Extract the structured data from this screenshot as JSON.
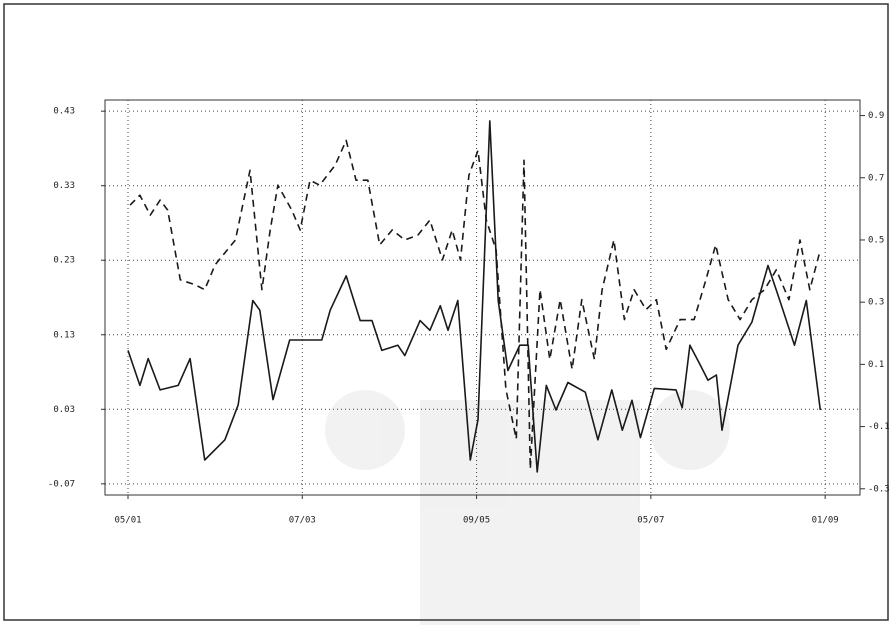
{
  "chart_data": {
    "type": "line",
    "xlim": [
      -3.3,
      105
    ],
    "xticks": [
      {
        "value": 0,
        "label": "05/01"
      },
      {
        "value": 25,
        "label": "07/03"
      },
      {
        "value": 50,
        "label": "09/05"
      },
      {
        "value": 75,
        "label": "05/07"
      },
      {
        "value": 100,
        "label": "01/09"
      }
    ],
    "ylim": [
      -0.085,
      0.445
    ],
    "yticks": [
      -0.07,
      0.03,
      0.13,
      0.23,
      0.33,
      0.43
    ],
    "y2lim": [
      -0.32,
      0.95
    ],
    "y2ticks": [
      -0.3,
      -0.1,
      0.1,
      0.3,
      0.5,
      0.7,
      0.9
    ],
    "grid": true,
    "series": [
      {
        "color": "#1a1a1a",
        "linestyle": "solid",
        "x": [
          0,
          1.7,
          2.9,
          4.6,
          7.2,
          8.9,
          11.0,
          13.9,
          15.8,
          17.9,
          18.9,
          20.8,
          23.2,
          25.5,
          27.8,
          29.0,
          31.3,
          33.3,
          35.0,
          36.4,
          38.7,
          39.7,
          41.9,
          43.3,
          44.8,
          45.9,
          47.3,
          49.1,
          50.2,
          51.9,
          53.1,
          54.5,
          56.2,
          57.4,
          58.7,
          60.0,
          61.4,
          63.1,
          65.6,
          67.4,
          69.4,
          70.9,
          72.3,
          73.5,
          75.5,
          78.6,
          79.5,
          80.6,
          82.1,
          83.2,
          84.4,
          85.2,
          87.5,
          89.5,
          91.8,
          93.5,
          95.6,
          97.3,
          99.3
        ],
        "values": [
          0.109,
          0.062,
          0.098,
          0.056,
          0.062,
          0.098,
          -0.038,
          -0.011,
          0.036,
          0.176,
          0.163,
          0.043,
          0.123,
          0.123,
          0.123,
          0.163,
          0.209,
          0.149,
          0.149,
          0.109,
          0.116,
          0.102,
          0.149,
          0.136,
          0.169,
          0.136,
          0.176,
          -0.038,
          0.016,
          0.417,
          0.176,
          0.082,
          0.116,
          0.116,
          -0.054,
          0.062,
          0.029,
          0.066,
          0.053,
          -0.011,
          0.056,
          0.002,
          0.042,
          -0.008,
          0.058,
          0.056,
          0.032,
          0.116,
          0.089,
          0.069,
          0.076,
          0.002,
          0.116,
          0.147,
          0.223,
          0.176,
          0.116,
          0.176,
          0.029
        ]
      },
      {
        "color": "#1a1a1a",
        "linestyle": "dashed",
        "axis": "y2",
        "x": [
          0.3,
          1.7,
          3.2,
          4.6,
          5.7,
          7.5,
          9.6,
          11.0,
          12.5,
          15.4,
          17.5,
          19.2,
          20.4,
          21.5,
          23.5,
          24.7,
          26.1,
          27.5,
          29.7,
          31.3,
          32.7,
          34.4,
          36.1,
          37.9,
          39.7,
          41.6,
          43.3,
          45.1,
          46.5,
          47.7,
          48.9,
          50.2,
          51.4,
          52.8,
          54.2,
          55.7,
          56.8,
          57.7,
          59.1,
          60.5,
          62.0,
          63.7,
          65.1,
          66.9,
          68.0,
          69.7,
          71.2,
          72.6,
          74.3,
          75.8,
          77.2,
          79.2,
          81.2,
          82.9,
          84.3,
          86.1,
          87.8,
          89.5,
          91.3,
          93.0,
          94.8,
          96.4,
          97.8,
          99.3
        ],
        "values": [
          0.612,
          0.644,
          0.58,
          0.628,
          0.596,
          0.372,
          0.356,
          0.34,
          0.42,
          0.5,
          0.724,
          0.34,
          0.532,
          0.676,
          0.596,
          0.532,
          0.692,
          0.676,
          0.74,
          0.82,
          0.692,
          0.692,
          0.484,
          0.532,
          0.5,
          0.516,
          0.564,
          0.436,
          0.532,
          0.436,
          0.708,
          0.788,
          0.564,
          0.468,
          0.02,
          -0.14,
          0.756,
          -0.236,
          0.34,
          0.116,
          0.308,
          0.084,
          0.308,
          0.116,
          0.34,
          0.5,
          0.244,
          0.34,
          0.276,
          0.308,
          0.148,
          0.244,
          0.244,
          0.372,
          0.484,
          0.308,
          0.244,
          0.308,
          0.34,
          0.404,
          0.308,
          0.5,
          0.34,
          0.468
        ]
      }
    ]
  }
}
